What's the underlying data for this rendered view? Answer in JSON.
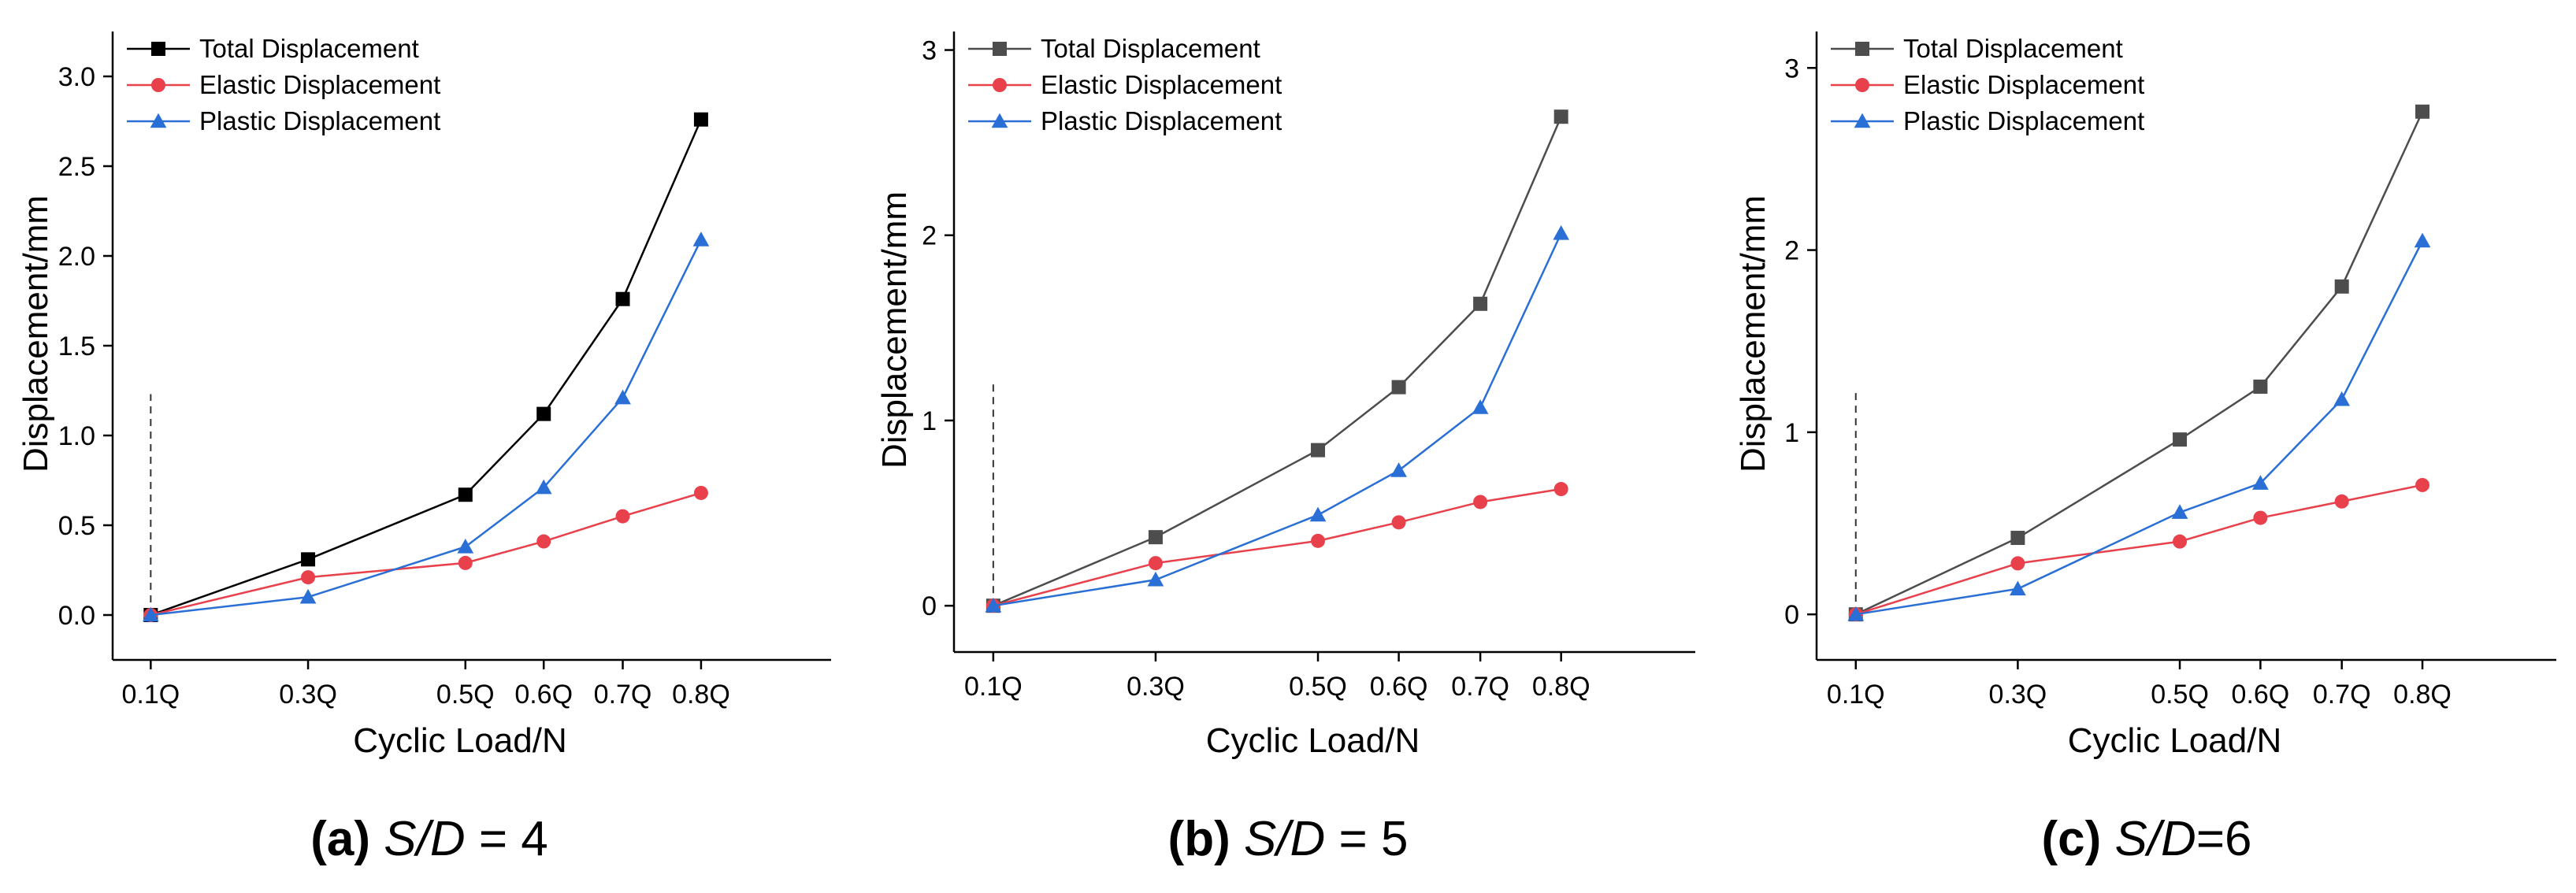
{
  "colors": {
    "axis": "#000000",
    "total_a": "#000000",
    "total_bc": "#4d4d4d",
    "elastic": "#e8414c",
    "plastic": "#2a6fd6",
    "reference_line": "#333333"
  },
  "chart_data": [
    {
      "type": "line",
      "panel": "a",
      "caption_tag": "(a)",
      "caption_var": "S/D",
      "caption_rest": " = 4",
      "xlabel": "Cyclic Load/N",
      "ylabel": "Displacement/mm",
      "x": [
        0.1,
        0.3,
        0.5,
        0.6,
        0.7,
        0.8
      ],
      "x_tick_labels": [
        "0.1Q",
        "0.3Q",
        "0.5Q",
        "0.6Q",
        "0.7Q",
        "0.8Q"
      ],
      "ylim": [
        -0.25,
        3.25
      ],
      "y_ticks": [
        0,
        0.5,
        1,
        1.5,
        2,
        2.5,
        3
      ],
      "y_tick_labels": [
        "0.0",
        "0.5",
        "1.0",
        "1.5",
        "2.0",
        "2.5",
        "3.0"
      ],
      "reference_line": {
        "x": 0.1,
        "y_top": 1.23
      },
      "legend_position": "top-left",
      "series": [
        {
          "name": "Total Displacement",
          "marker": "square",
          "color_key": "total_a",
          "values": [
            0,
            0.31,
            0.67,
            1.12,
            1.76,
            2.76
          ]
        },
        {
          "name": "Elastic Displacement",
          "marker": "circle",
          "color_key": "elastic",
          "values": [
            0,
            0.21,
            0.29,
            0.41,
            0.55,
            0.68
          ]
        },
        {
          "name": "Plastic Displacement",
          "marker": "triangle",
          "color_key": "plastic",
          "values": [
            0,
            0.1,
            0.38,
            0.71,
            1.21,
            2.09
          ]
        }
      ]
    },
    {
      "type": "line",
      "panel": "b",
      "caption_tag": "(b)",
      "caption_var": "S/D",
      "caption_rest": " = 5",
      "xlabel": "Cyclic Load/N",
      "ylabel": "Displacement/mm",
      "x": [
        0.1,
        0.3,
        0.5,
        0.6,
        0.7,
        0.8
      ],
      "x_tick_labels": [
        "0.1Q",
        "0.3Q",
        "0.5Q",
        "0.6Q",
        "0.7Q",
        "0.8Q"
      ],
      "ylim": [
        -0.25,
        3.1
      ],
      "y_ticks": [
        0,
        1,
        2,
        3
      ],
      "y_tick_labels": [
        "0",
        "1",
        "2",
        "3"
      ],
      "reference_line": {
        "x": 0.1,
        "y_top": 1.2
      },
      "legend_position": "top-left",
      "series": [
        {
          "name": "Total Displacement",
          "marker": "square",
          "color_key": "total_bc",
          "values": [
            0,
            0.37,
            0.84,
            1.18,
            1.63,
            2.64
          ]
        },
        {
          "name": "Elastic Displacement",
          "marker": "circle",
          "color_key": "elastic",
          "values": [
            0,
            0.23,
            0.35,
            0.45,
            0.56,
            0.63
          ]
        },
        {
          "name": "Plastic Displacement",
          "marker": "triangle",
          "color_key": "plastic",
          "values": [
            0,
            0.14,
            0.49,
            0.73,
            1.07,
            2.01
          ]
        }
      ]
    },
    {
      "type": "line",
      "panel": "c",
      "caption_tag": "(c)",
      "caption_var": "S/D",
      "caption_rest": "=6",
      "xlabel": "Cyclic Load/N",
      "ylabel": "Displacement/mm",
      "x": [
        0.1,
        0.3,
        0.5,
        0.6,
        0.7,
        0.8
      ],
      "x_tick_labels": [
        "0.1Q",
        "0.3Q",
        "0.5Q",
        "0.6Q",
        "0.7Q",
        "0.8Q"
      ],
      "ylim": [
        -0.25,
        3.2
      ],
      "y_ticks": [
        0,
        1,
        2,
        3
      ],
      "y_tick_labels": [
        "0",
        "1",
        "2",
        "3"
      ],
      "reference_line": {
        "x": 0.1,
        "y_top": 1.23
      },
      "legend_position": "top-left",
      "series": [
        {
          "name": "Total Displacement",
          "marker": "square",
          "color_key": "total_bc",
          "values": [
            0,
            0.42,
            0.96,
            1.25,
            1.8,
            2.76
          ]
        },
        {
          "name": "Elastic Displacement",
          "marker": "circle",
          "color_key": "elastic",
          "values": [
            0,
            0.28,
            0.4,
            0.53,
            0.62,
            0.71
          ]
        },
        {
          "name": "Plastic Displacement",
          "marker": "triangle",
          "color_key": "plastic",
          "values": [
            0,
            0.14,
            0.56,
            0.72,
            1.18,
            2.05
          ]
        }
      ]
    }
  ]
}
